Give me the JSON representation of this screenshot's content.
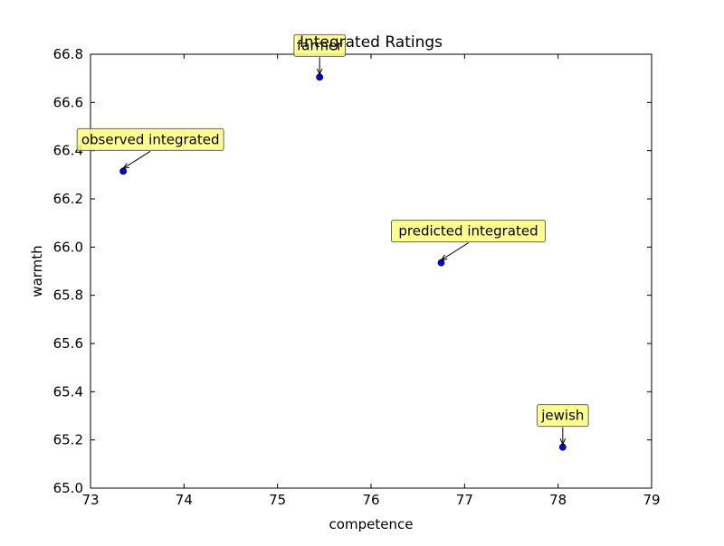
{
  "chart_data": {
    "type": "scatter",
    "title": "Integrated Ratings",
    "xlabel": "competence",
    "ylabel": "warmth",
    "xlim": [
      73,
      79
    ],
    "ylim": [
      65.0,
      66.8
    ],
    "xticks": [
      "73",
      "74",
      "75",
      "76",
      "77",
      "78",
      "79"
    ],
    "yticks": [
      "65.0",
      "65.2",
      "65.4",
      "65.6",
      "65.8",
      "66.0",
      "66.2",
      "66.4",
      "66.6",
      "66.8"
    ],
    "grid": false,
    "points": [
      {
        "x": 75.45,
        "y": 66.705,
        "label": "farmer"
      },
      {
        "x": 73.35,
        "y": 66.315,
        "label": "observed integrated"
      },
      {
        "x": 76.75,
        "y": 65.935,
        "label": "predicted integrated"
      },
      {
        "x": 78.05,
        "y": 65.17,
        "label": "jewish"
      }
    ],
    "colors": {
      "marker": "#0000ff",
      "annotation_box": "#ffff7a"
    }
  }
}
